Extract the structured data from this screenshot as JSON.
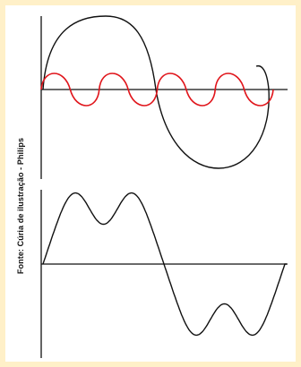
{
  "credit_text": "Fonte: Cúria de ilustração - Philips",
  "colors": {
    "frame": "#fff0c8",
    "fundamental_wave": "#111111",
    "harmonic_wave": "#e0151b",
    "resultant_wave": "#111111",
    "axes": "#111111"
  },
  "diagram": {
    "top_panel": {
      "fundamental_cycles": 1,
      "harmonic_cycles": 4
    },
    "bottom_panel": {
      "waveform": "distorted-sum-of-fundamental-and-harmonic"
    }
  }
}
